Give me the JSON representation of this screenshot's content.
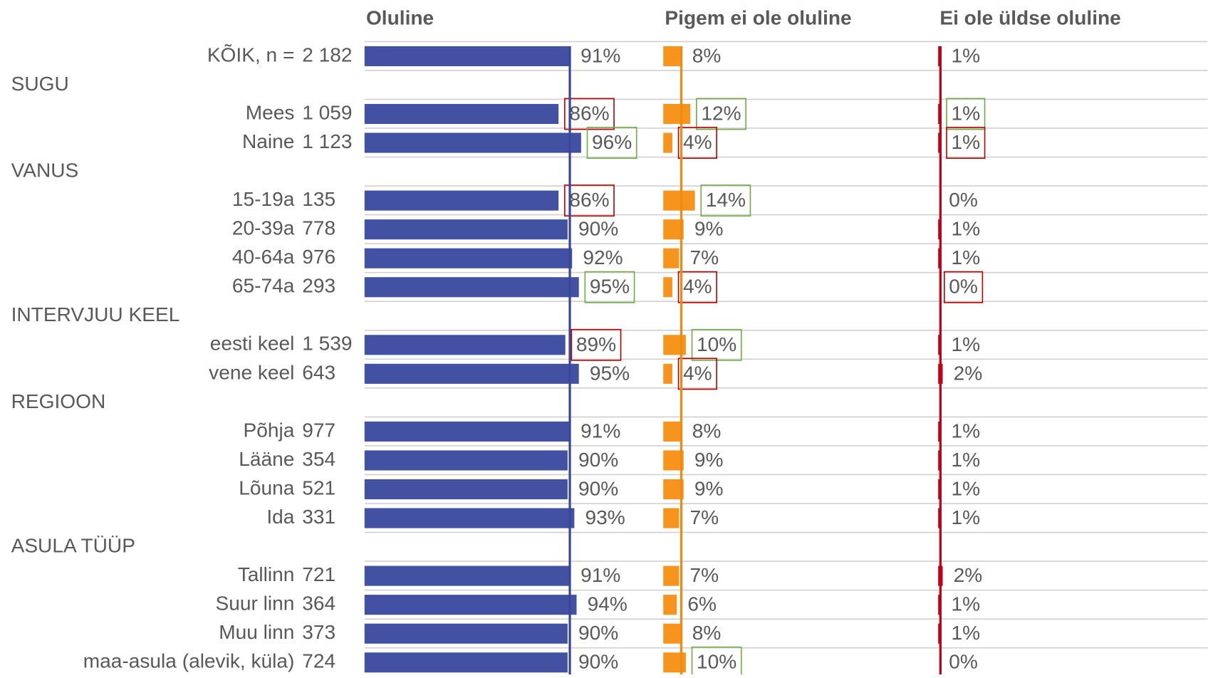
{
  "chart_data": {
    "type": "bar",
    "orientation": "horizontal",
    "categories": [
      "KÕIK, n =",
      "SUGU",
      "Mees",
      "Naine",
      "VANUS",
      "15-19a",
      "20-39a",
      "40-64a",
      "65-74a",
      "INTERVJUU KEEL",
      "eesti keel",
      "vene keel",
      "REGIOON",
      "Põhja",
      "Lääne",
      "Lõuna",
      "Ida",
      "ASULA TÜÜP",
      "Tallinn",
      "Suur linn",
      "Muu linn",
      "maa-asula (alevik, küla)"
    ],
    "n": [
      "2 182",
      null,
      "1 059",
      "1 123",
      null,
      "135",
      "778",
      "976",
      "293",
      null,
      "1 539",
      "643",
      null,
      "977",
      "354",
      "521",
      "331",
      null,
      "721",
      "364",
      "373",
      "724"
    ],
    "xlim": [
      0,
      100
    ],
    "series": [
      {
        "name": "Oluline",
        "color": "#4351a3",
        "line_color": "#3a479a",
        "values": [
          91,
          null,
          86,
          96,
          null,
          86,
          90,
          92,
          95,
          null,
          89,
          95,
          null,
          91,
          90,
          90,
          93,
          null,
          91,
          94,
          90,
          90
        ],
        "value_labels": [
          "91%",
          null,
          "86%",
          "96%",
          null,
          "86%",
          "90%",
          "92%",
          "95%",
          null,
          "89%",
          "95%",
          null,
          "91%",
          "90%",
          "90%",
          "93%",
          null,
          "91%",
          "94%",
          "90%",
          "90%"
        ],
        "highlight": [
          null,
          null,
          "#c00000",
          "#70ad47",
          null,
          "#c00000",
          null,
          null,
          "#70ad47",
          null,
          "#c00000",
          null,
          null,
          null,
          null,
          null,
          null,
          null,
          null,
          null,
          null,
          null
        ]
      },
      {
        "name": "Pigem ei ole oluline",
        "color": "#f7941e",
        "line_color": "#f08a10",
        "values": [
          8,
          null,
          12,
          4,
          null,
          14,
          9,
          7,
          4,
          null,
          10,
          4,
          null,
          8,
          9,
          9,
          7,
          null,
          7,
          6,
          8,
          10
        ],
        "value_labels": [
          "8%",
          null,
          "12%",
          "4%",
          null,
          "14%",
          "9%",
          "7%",
          "4%",
          null,
          "10%",
          "4%",
          null,
          "8%",
          "9%",
          "9%",
          "7%",
          null,
          "7%",
          "6%",
          "8%",
          "10%"
        ],
        "highlight": [
          null,
          null,
          "#70ad47",
          "#c00000",
          null,
          "#70ad47",
          null,
          null,
          "#c00000",
          null,
          "#70ad47",
          "#c00000",
          null,
          null,
          null,
          null,
          null,
          null,
          null,
          null,
          null,
          "#70ad47"
        ]
      },
      {
        "name": "Ei ole üldse oluline",
        "color": "#c00018",
        "line_color": "#c00018",
        "values": [
          1,
          null,
          1,
          1,
          null,
          0,
          1,
          1,
          0,
          null,
          1,
          2,
          null,
          1,
          1,
          1,
          1,
          null,
          2,
          1,
          1,
          0
        ],
        "value_labels": [
          "1%",
          null,
          "1%",
          "1%",
          null,
          "0%",
          "1%",
          "1%",
          "0%",
          null,
          "1%",
          "2%",
          null,
          "1%",
          "1%",
          "1%",
          "1%",
          null,
          "2%",
          "1%",
          "1%",
          "0%"
        ],
        "highlight": [
          null,
          null,
          "#70ad47",
          "#c00000",
          null,
          null,
          null,
          null,
          "#c00000",
          null,
          null,
          null,
          null,
          null,
          null,
          null,
          null,
          null,
          null,
          null,
          null,
          null
        ]
      }
    ]
  }
}
